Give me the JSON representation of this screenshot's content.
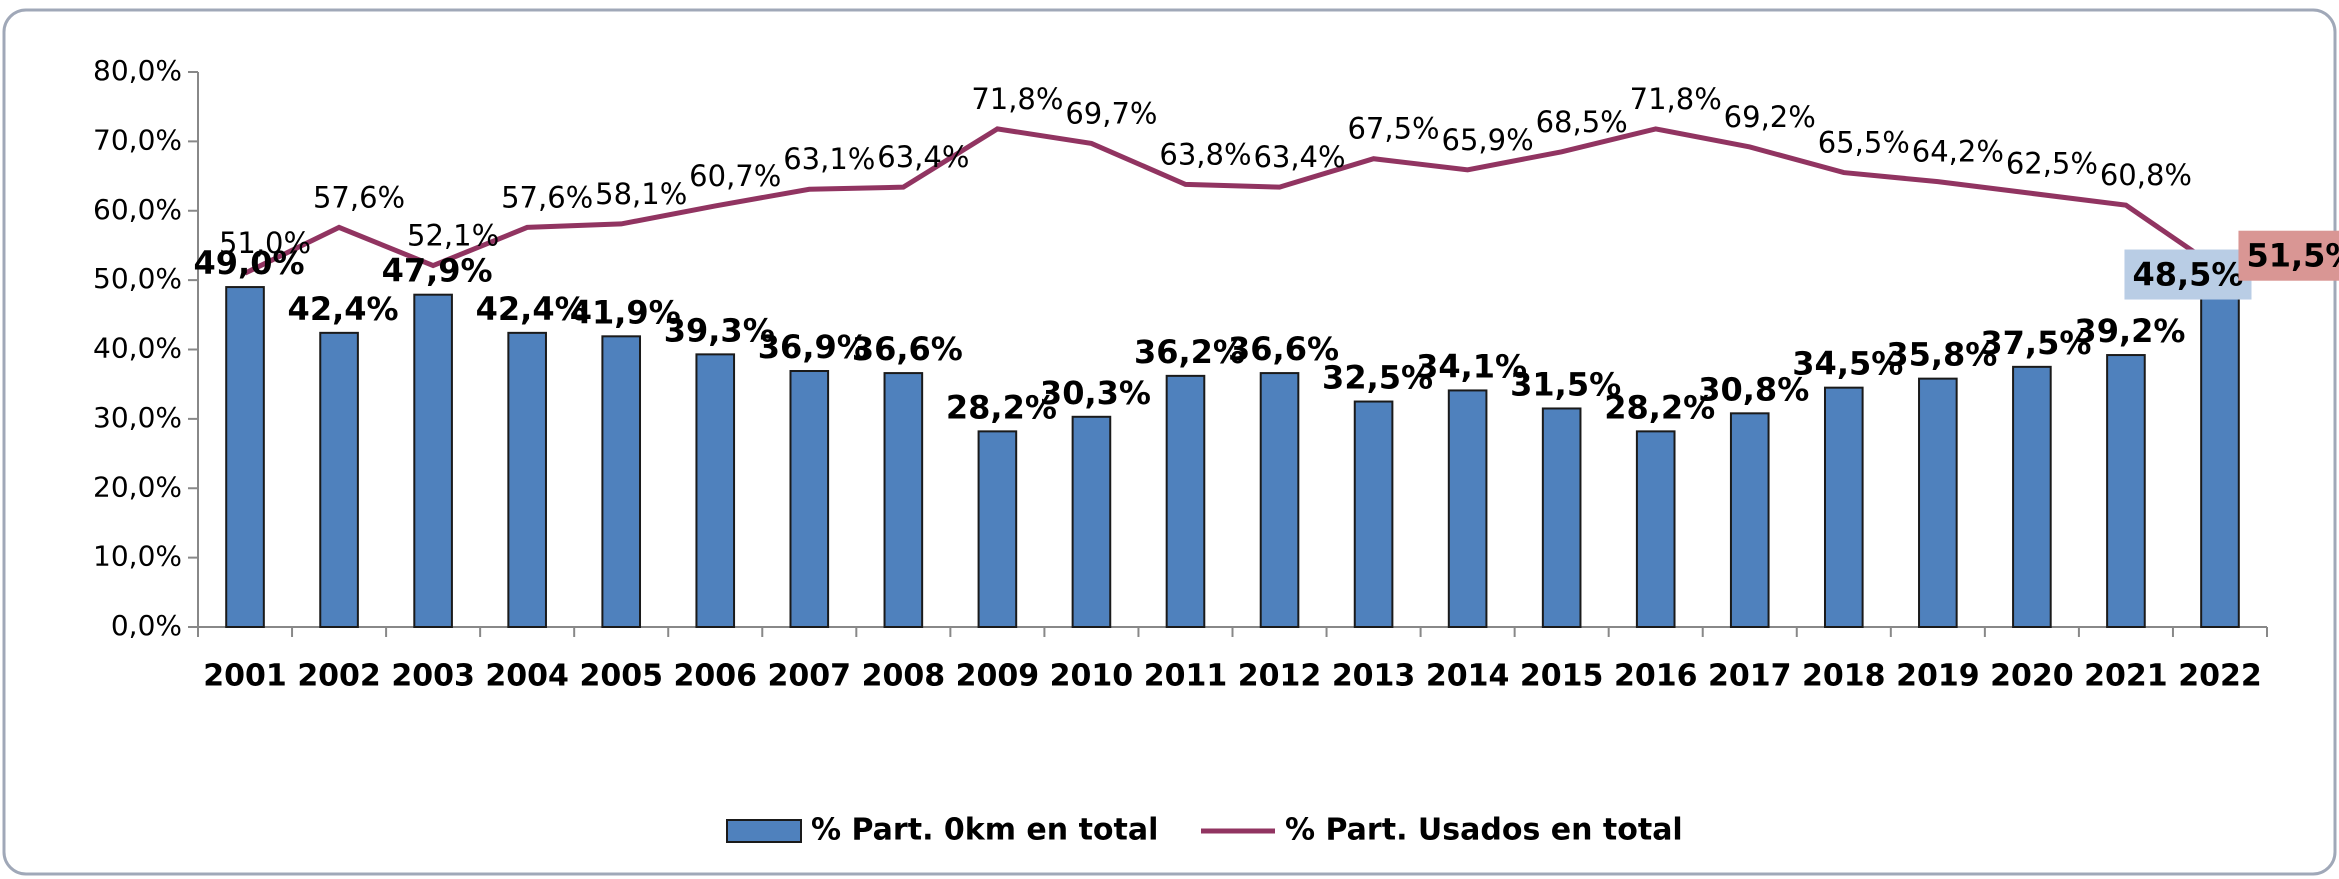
{
  "chart_data": {
    "type": "bar_line",
    "categories": [
      "2001",
      "2002",
      "2003",
      "2004",
      "2005",
      "2006",
      "2007",
      "2008",
      "2009",
      "2010",
      "2011",
      "2012",
      "2013",
      "2014",
      "2015",
      "2016",
      "2017",
      "2018",
      "2019",
      "2020",
      "2021",
      "2022"
    ],
    "ylim": [
      0,
      80
    ],
    "yticks": [
      {
        "value": 0,
        "label": "0,0%"
      },
      {
        "value": 10,
        "label": "10,0%"
      },
      {
        "value": 20,
        "label": "20,0%"
      },
      {
        "value": 30,
        "label": "30,0%"
      },
      {
        "value": 40,
        "label": "40,0%"
      },
      {
        "value": 50,
        "label": "50,0%"
      },
      {
        "value": 60,
        "label": "60,0%"
      },
      {
        "value": 70,
        "label": "70,0%"
      },
      {
        "value": 80,
        "label": "80,0%"
      }
    ],
    "legend": "bottom",
    "series": [
      {
        "name": "% Part. 0km en total",
        "type": "bar",
        "color": "#4f81bd",
        "values": [
          49.0,
          42.4,
          47.9,
          42.4,
          41.9,
          39.3,
          36.9,
          36.6,
          28.2,
          30.3,
          36.2,
          36.6,
          32.5,
          34.1,
          31.5,
          28.2,
          30.8,
          34.5,
          35.8,
          37.5,
          39.2,
          48.5
        ],
        "value_labels": [
          "49,0%",
          "42,4%",
          "47,9%",
          "42,4%",
          "41,9%",
          "39,3%",
          "36,9%",
          "36,6%",
          "28,2%",
          "30,3%",
          "36,2%",
          "36,6%",
          "32,5%",
          "34,1%",
          "31,5%",
          "28,2%",
          "30,8%",
          "34,5%",
          "35,8%",
          "37,5%",
          "39,2%",
          "48,5%"
        ]
      },
      {
        "name": "% Part. Usados en total",
        "type": "line",
        "color": "#913461",
        "values": [
          51.0,
          57.6,
          52.1,
          57.6,
          58.1,
          60.7,
          63.1,
          63.4,
          71.8,
          69.7,
          63.8,
          63.4,
          67.5,
          65.9,
          68.5,
          71.8,
          69.2,
          65.5,
          64.2,
          62.5,
          60.8,
          51.5
        ],
        "value_labels": [
          "51,0%",
          "57,6%",
          "52,1%",
          "57,6%",
          "58,1%",
          "60,7%",
          "63,1%",
          "63,4%",
          "71,8%",
          "69,7%",
          "63,8%",
          "63,4%",
          "67,5%",
          "65,9%",
          "68,5%",
          "71,8%",
          "69,2%",
          "65,5%",
          "64,2%",
          "62,5%",
          "60,8%",
          "51,5%"
        ]
      }
    ]
  }
}
